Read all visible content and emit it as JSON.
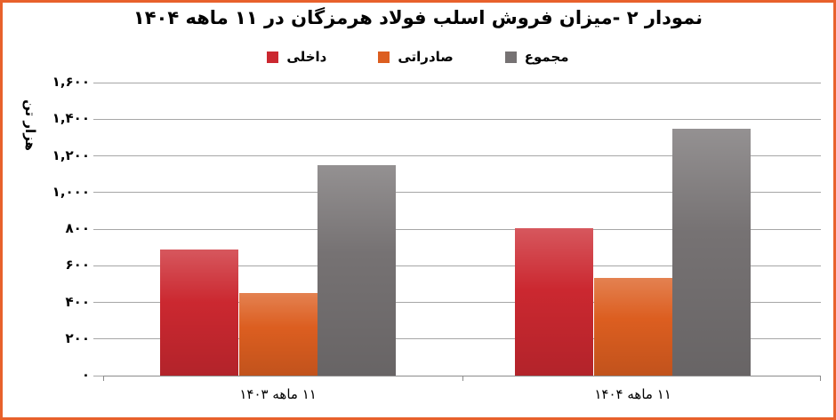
{
  "frame": {
    "border_color": "#E8612C"
  },
  "title": "نمودار ۲ -میزان فروش اسلب فولاد هرمزگان در ۱۱ ماهه ۱۴۰۴",
  "legend": [
    {
      "key": "domestic",
      "label": "داخلی",
      "color": "#CB2830"
    },
    {
      "key": "export",
      "label": "صادراتی",
      "color": "#DC5E20"
    },
    {
      "key": "total",
      "label": "مجموع",
      "color": "#767273"
    }
  ],
  "y_axis": {
    "title": "هزار تن",
    "tick_labels": [
      "۱,۶۰۰",
      "۱,۴۰۰",
      "۱,۲۰۰",
      "۱,۰۰۰",
      "۸۰۰",
      "۶۰۰",
      "۴۰۰",
      "۲۰۰",
      "۰"
    ],
    "tick_values": [
      1600,
      1400,
      1200,
      1000,
      800,
      600,
      400,
      200,
      0
    ]
  },
  "x_axis": {
    "categories": [
      "۱۱ ماهه ۱۴۰۳",
      "۱۱ ماهه ۱۴۰۴"
    ]
  },
  "chart_data": {
    "type": "bar",
    "title": "نمودار ۲ -میزان فروش اسلب فولاد هرمزگان در ۱۱ ماهه ۱۴۰۴",
    "categories": [
      "۱۱ ماهه ۱۴۰۳",
      "۱۱ ماهه ۱۴۰۴"
    ],
    "series": [
      {
        "key": "domestic",
        "name": "داخلی",
        "color": "#CB2830",
        "values": [
          690,
          807
        ]
      },
      {
        "key": "export",
        "name": "صادراتی",
        "color": "#DC5E20",
        "values": [
          452,
          533
        ]
      },
      {
        "key": "total",
        "name": "مجموع",
        "color": "#767273",
        "values": [
          1147,
          1346
        ]
      }
    ],
    "xlabel": "",
    "ylabel": "هزار تن",
    "ylim": [
      0,
      1600
    ],
    "grid": true,
    "legend_position": "top"
  }
}
